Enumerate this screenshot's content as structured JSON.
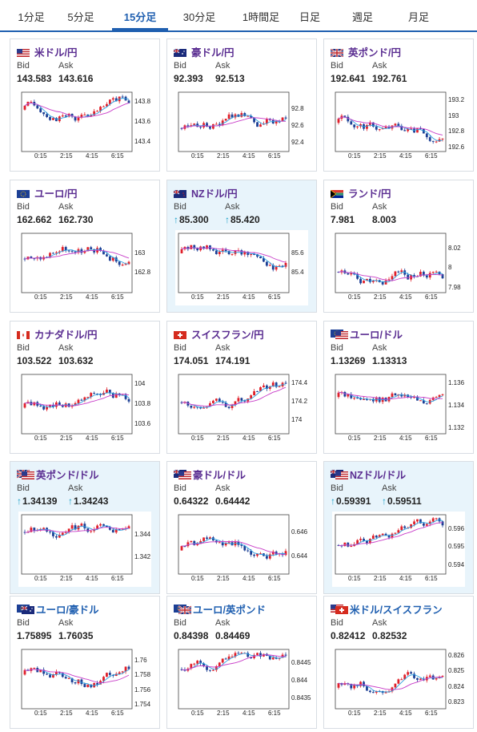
{
  "tabs": [
    {
      "label": "1分足",
      "active": false
    },
    {
      "label": "5分足",
      "active": false
    },
    {
      "label": "15分足",
      "active": true
    },
    {
      "label": "30分足",
      "active": false
    },
    {
      "label": "1時間足",
      "active": false
    },
    {
      "label": "日足",
      "active": false
    },
    {
      "label": "週足",
      "active": false
    },
    {
      "label": "月足",
      "active": false
    }
  ],
  "bid_label": "Bid",
  "ask_label": "Ask",
  "x_ticks": [
    "0:15",
    "2:15",
    "4:15",
    "6:15"
  ],
  "colors": {
    "up": "#e0202a",
    "down": "#1c3f95",
    "ma_short": "#2a9ee0",
    "ma_long": "#c83cc8",
    "title": "#5a2d91",
    "active_tab": "#1f5fb0"
  },
  "cards": [
    {
      "title": "米ドル/円",
      "flag": "us-flag-icon",
      "bid": "143.583",
      "ask": "143.616",
      "arrow": false,
      "highlight": false,
      "chart_data": {
        "type": "candlestick",
        "yticks": [
          "143.8",
          "143.6",
          "143.4"
        ],
        "ylim": [
          143.3,
          143.9
        ],
        "x": [
          "0:15",
          "2:15",
          "4:15",
          "6:15"
        ]
      }
    },
    {
      "title": "豪ドル/円",
      "flag": "au-flag-icon",
      "bid": "92.393",
      "ask": "92.513",
      "arrow": false,
      "highlight": false,
      "chart_data": {
        "type": "candlestick",
        "yticks": [
          "92.8",
          "92.6",
          "92.4"
        ],
        "ylim": [
          92.3,
          93.0
        ],
        "x": [
          "0:15",
          "2:15",
          "4:15",
          "6:15"
        ]
      }
    },
    {
      "title": "英ポンド/円",
      "flag": "gb-flag-icon",
      "bid": "192.641",
      "ask": "192.761",
      "arrow": false,
      "highlight": false,
      "chart_data": {
        "type": "candlestick",
        "yticks": [
          "193.2",
          "193",
          "192.8",
          "192.6"
        ],
        "ylim": [
          192.55,
          193.3
        ],
        "x": [
          "0:15",
          "2:15",
          "4:15",
          "6:15"
        ]
      }
    },
    {
      "title": "ユーロ/円",
      "flag": "eu-flag-icon",
      "bid": "162.662",
      "ask": "162.730",
      "arrow": false,
      "highlight": false,
      "chart_data": {
        "type": "candlestick",
        "yticks": [
          "163",
          "162.8"
        ],
        "ylim": [
          162.6,
          163.2
        ],
        "x": [
          "0:15",
          "2:15",
          "4:15",
          "6:15"
        ]
      }
    },
    {
      "title": "NZドル/円",
      "flag": "nz-flag-icon",
      "bid": "85.300",
      "ask": "85.420",
      "arrow": true,
      "highlight": true,
      "chart_data": {
        "type": "candlestick",
        "yticks": [
          "85.6",
          "85.4"
        ],
        "ylim": [
          85.2,
          85.8
        ],
        "x": [
          "0:15",
          "2:15",
          "4:15",
          "6:15"
        ]
      }
    },
    {
      "title": "ランド/円",
      "flag": "za-flag-icon",
      "bid": "7.981",
      "ask": "8.003",
      "arrow": false,
      "highlight": false,
      "chart_data": {
        "type": "candlestick",
        "yticks": [
          "8.02",
          "8",
          "7.98"
        ],
        "ylim": [
          7.975,
          8.035
        ],
        "x": [
          "0:15",
          "2:15",
          "4:15",
          "6:15"
        ]
      }
    },
    {
      "title": "カナダドル/円",
      "flag": "ca-flag-icon",
      "bid": "103.522",
      "ask": "103.632",
      "arrow": false,
      "highlight": false,
      "chart_data": {
        "type": "candlestick",
        "yticks": [
          "104",
          "103.8",
          "103.6"
        ],
        "ylim": [
          103.5,
          104.1
        ],
        "x": [
          "0:15",
          "2:15",
          "4:15",
          "6:15"
        ]
      }
    },
    {
      "title": "スイスフラン/円",
      "flag": "ch-flag-icon",
      "bid": "174.051",
      "ask": "174.191",
      "arrow": false,
      "highlight": false,
      "chart_data": {
        "type": "candlestick",
        "yticks": [
          "174.4",
          "174.2",
          "174"
        ],
        "ylim": [
          173.85,
          174.5
        ],
        "x": [
          "0:15",
          "2:15",
          "4:15",
          "6:15"
        ]
      }
    },
    {
      "title": "ユーロ/ドル",
      "flag": "eu-us-flag-icon",
      "bid": "1.13269",
      "ask": "1.13313",
      "arrow": false,
      "highlight": false,
      "chart_data": {
        "type": "candlestick",
        "yticks": [
          "1.136",
          "1.134",
          "1.132"
        ],
        "ylim": [
          1.1315,
          1.1368
        ],
        "x": [
          "0:15",
          "2:15",
          "4:15",
          "6:15"
        ]
      }
    },
    {
      "title": "英ポンド/ドル",
      "flag": "gb-us-flag-icon",
      "bid": "1.34139",
      "ask": "1.34243",
      "arrow": true,
      "highlight": true,
      "chart_data": {
        "type": "candlestick",
        "yticks": [
          "1.344",
          "1.342"
        ],
        "ylim": [
          1.3405,
          1.3458
        ],
        "x": [
          "0:15",
          "2:15",
          "4:15",
          "6:15"
        ]
      }
    },
    {
      "title": "豪ドル/ドル",
      "flag": "au-us-flag-icon",
      "bid": "0.64322",
      "ask": "0.64442",
      "arrow": false,
      "highlight": false,
      "chart_data": {
        "type": "candlestick",
        "yticks": [
          "0.646",
          "0.644"
        ],
        "ylim": [
          0.6425,
          0.6475
        ],
        "x": [
          "0:15",
          "2:15",
          "4:15",
          "6:15"
        ]
      }
    },
    {
      "title": "NZドル/ドル",
      "flag": "nz-us-flag-icon",
      "bid": "0.59391",
      "ask": "0.59511",
      "arrow": true,
      "highlight": true,
      "chart_data": {
        "type": "candlestick",
        "yticks": [
          "0.596",
          "0.595",
          "0.594"
        ],
        "ylim": [
          0.5935,
          0.5968
        ],
        "x": [
          "0:15",
          "2:15",
          "4:15",
          "6:15"
        ]
      }
    },
    {
      "title": "ユーロ/豪ドル",
      "flag": "eu-au-flag-icon",
      "bid": "1.75895",
      "ask": "1.76035",
      "arrow": false,
      "highlight": false,
      "chart_data": {
        "type": "candlestick",
        "yticks": [
          "1.76",
          "1.758",
          "1.756",
          "1.754"
        ],
        "ylim": [
          1.7535,
          1.7615
        ],
        "x": [
          "0:15",
          "2:15",
          "4:15",
          "6:15"
        ]
      }
    },
    {
      "title": "ユーロ/英ポンド",
      "flag": "eu-gb-flag-icon",
      "bid": "0.84398",
      "ask": "0.84469",
      "arrow": false,
      "highlight": false,
      "chart_data": {
        "type": "candlestick",
        "yticks": [
          "0.8445",
          "0.844",
          "0.8435"
        ],
        "ylim": [
          0.8432,
          0.8449
        ],
        "x": [
          "0:15",
          "2:15",
          "4:15",
          "6:15"
        ]
      }
    },
    {
      "title": "米ドル/スイスフラン",
      "flag": "us-ch-flag-icon",
      "bid": "0.82412",
      "ask": "0.82532",
      "arrow": false,
      "highlight": false,
      "chart_data": {
        "type": "candlestick",
        "yticks": [
          "0.826",
          "0.825",
          "0.824",
          "0.823"
        ],
        "ylim": [
          0.8226,
          0.8264
        ],
        "x": [
          "0:15",
          "2:15",
          "4:15",
          "6:15"
        ]
      }
    }
  ]
}
